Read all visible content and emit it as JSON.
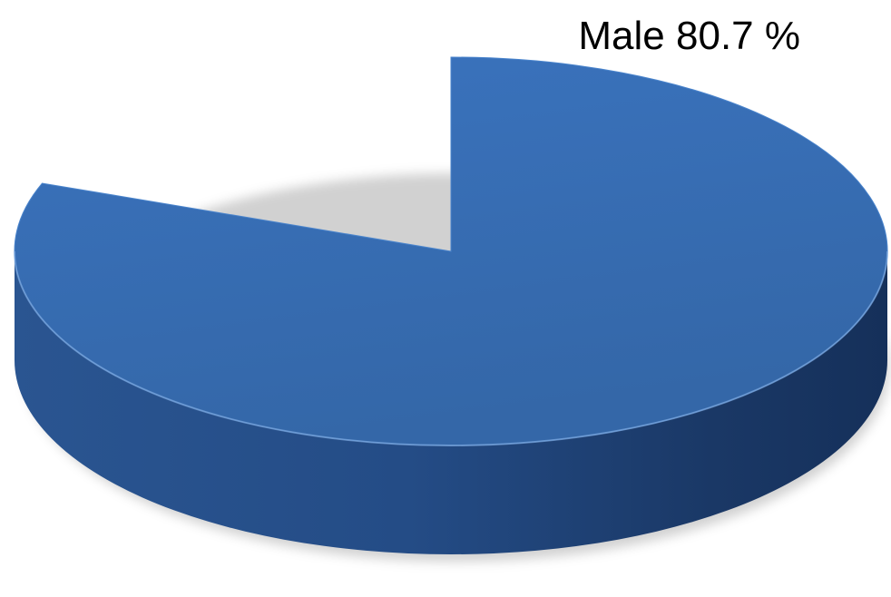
{
  "chart_data": {
    "type": "pie",
    "style": "3d",
    "slices": [
      {
        "label": "Male",
        "value": 80.7,
        "color": "#3a73be"
      },
      {
        "label": "",
        "value": 19.3,
        "color": ""
      }
    ],
    "labels": {
      "male": {
        "name": "Male",
        "value_text": "80.7 %"
      }
    },
    "legend": "none"
  }
}
